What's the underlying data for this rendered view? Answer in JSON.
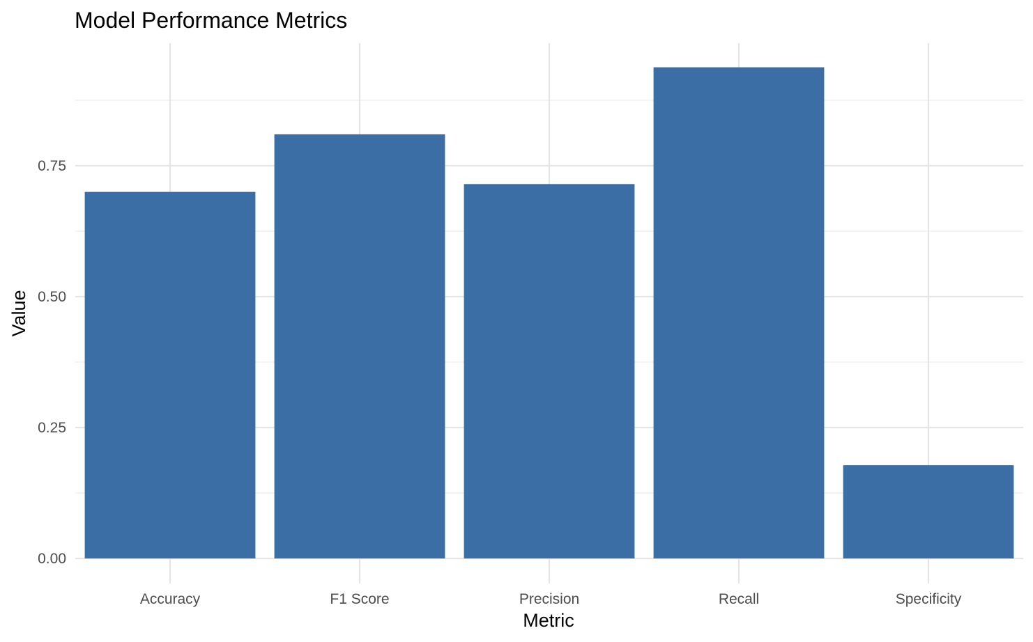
{
  "chart_data": {
    "type": "bar",
    "title": "Model Performance Metrics",
    "xlabel": "Metric",
    "ylabel": "Value",
    "categories": [
      "Accuracy",
      "F1 Score",
      "Precision",
      "Recall",
      "Specificity"
    ],
    "values": [
      0.7,
      0.81,
      0.715,
      0.938,
      0.178
    ],
    "ylim": [
      0,
      0.98
    ],
    "yticks": [
      0.0,
      0.25,
      0.5,
      0.75
    ],
    "ytick_labels": [
      "0.00",
      "0.25",
      "0.50",
      "0.75"
    ],
    "grid": true,
    "legend": "none",
    "bar_color": "#3a6ea5"
  }
}
